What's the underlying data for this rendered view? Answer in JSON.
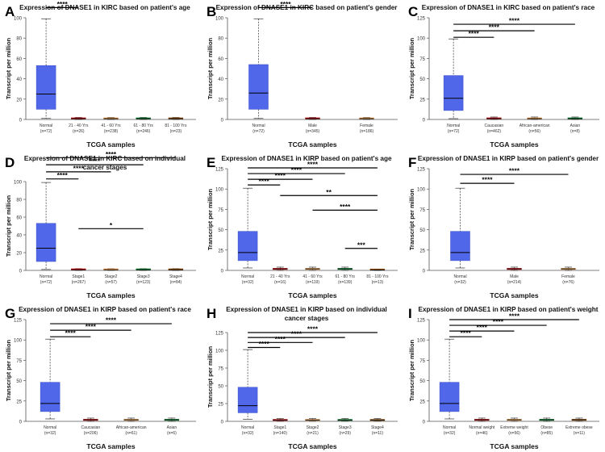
{
  "accent_box_color": "#4f67e8",
  "median_color": "#000000",
  "chart_data": [
    {
      "type": "box",
      "letter": "A",
      "title": [
        "Expression of DNASE1 in KIRC based on patient's age"
      ],
      "xlabel": "TCGA samples",
      "ylabel": "Transcript per million",
      "ylim": [
        0,
        100
      ],
      "yticks": [
        0,
        20,
        40,
        60,
        80,
        100
      ],
      "categories": [
        {
          "name": "Normal",
          "n": "(n=72)",
          "q1": 10,
          "median": 25,
          "q3": 53,
          "min": 1,
          "max": 99
        },
        {
          "name": "21 - 40 Yrs",
          "n": "(n=26)",
          "q1": 0.4,
          "median": 0.8,
          "q3": 1.2,
          "min": 0,
          "max": 2
        },
        {
          "name": "41 - 60 Yrs",
          "n": "(n=238)",
          "q1": 0.4,
          "median": 0.8,
          "q3": 1.2,
          "min": 0,
          "max": 2
        },
        {
          "name": "61 - 80 Yrs",
          "n": "(n=246)",
          "q1": 0.4,
          "median": 0.8,
          "q3": 1.2,
          "min": 0,
          "max": 2
        },
        {
          "name": "81 - 100 Yrs",
          "n": "(n=23)",
          "q1": 0.4,
          "median": 0.8,
          "q3": 1.2,
          "min": 0,
          "max": 2
        }
      ],
      "significance": [
        {
          "from": 0,
          "to": 1,
          "label": "****",
          "y": 110
        },
        {
          "from": 0,
          "to": 2,
          "label": "****",
          "y": 118
        },
        {
          "from": 0,
          "to": 3,
          "label": "****",
          "y": 126
        }
      ]
    },
    {
      "type": "box",
      "letter": "B",
      "title": [
        "Expression of DNASE1 in KIRC based on patient's gender"
      ],
      "xlabel": "TCGA samples",
      "ylabel": "Transcript per million",
      "ylim": [
        0,
        100
      ],
      "yticks": [
        0,
        20,
        40,
        60,
        80,
        100
      ],
      "categories": [
        {
          "name": "Normal",
          "n": "(n=72)",
          "q1": 10,
          "median": 26,
          "q3": 54,
          "min": 1,
          "max": 99
        },
        {
          "name": "Male",
          "n": "(n=345)",
          "q1": 0.4,
          "median": 0.8,
          "q3": 1.2,
          "min": 0,
          "max": 2
        },
        {
          "name": "Female",
          "n": "(n=186)",
          "q1": 0.4,
          "median": 0.8,
          "q3": 1.2,
          "min": 0,
          "max": 2
        }
      ],
      "significance": [
        {
          "from": 0,
          "to": 1,
          "label": "****",
          "y": 110
        },
        {
          "from": 0,
          "to": 2,
          "label": "****",
          "y": 120
        }
      ]
    },
    {
      "type": "box",
      "letter": "C",
      "title": [
        "Expression of DNASE1 in KIRC based on patient's race"
      ],
      "xlabel": "TCGA samples",
      "ylabel": "Transcript per million",
      "ylim": [
        0,
        125
      ],
      "yticks": [
        0,
        25,
        50,
        75,
        100,
        125
      ],
      "categories": [
        {
          "name": "Normal",
          "n": "(n=72)",
          "q1": 11,
          "median": 26,
          "q3": 54,
          "min": 1,
          "max": 99
        },
        {
          "name": "Caucasian",
          "n": "(n=462)",
          "q1": 0.5,
          "median": 1,
          "q3": 1.5,
          "min": 0,
          "max": 3
        },
        {
          "name": "African-american",
          "n": "(n=56)",
          "q1": 0.5,
          "median": 1,
          "q3": 1.5,
          "min": 0,
          "max": 3
        },
        {
          "name": "Asian",
          "n": "(n=8)",
          "q1": 0.5,
          "median": 1,
          "q3": 1.5,
          "min": 0,
          "max": 3
        }
      ],
      "significance": [
        {
          "from": 0,
          "to": 1,
          "label": "****",
          "y": 101
        },
        {
          "from": 0,
          "to": 2,
          "label": "****",
          "y": 109
        },
        {
          "from": 0,
          "to": 3,
          "label": "****",
          "y": 117
        }
      ]
    },
    {
      "type": "box",
      "letter": "D",
      "title": [
        "Expression of DNASE1 in KIRC based on individual",
        "cancer stages"
      ],
      "xlabel": "TCGA samples",
      "ylabel": "Transcript per million",
      "ylim": [
        0,
        100
      ],
      "yticks": [
        0,
        20,
        40,
        60,
        80,
        100
      ],
      "categories": [
        {
          "name": "Normal",
          "n": "(n=72)",
          "q1": 10,
          "median": 25,
          "q3": 53,
          "min": 1,
          "max": 99
        },
        {
          "name": "Stage1",
          "n": "(n=267)",
          "q1": 0.4,
          "median": 0.8,
          "q3": 1.2,
          "min": 0,
          "max": 2
        },
        {
          "name": "Stage2",
          "n": "(n=57)",
          "q1": 0.4,
          "median": 0.8,
          "q3": 1.2,
          "min": 0,
          "max": 2
        },
        {
          "name": "Stage3",
          "n": "(n=123)",
          "q1": 0.4,
          "median": 0.8,
          "q3": 1.2,
          "min": 0,
          "max": 2
        },
        {
          "name": "Stage4",
          "n": "(n=84)",
          "q1": 0.4,
          "median": 0.8,
          "q3": 1.2,
          "min": 0,
          "max": 2
        }
      ],
      "significance": [
        {
          "from": 0,
          "to": 1,
          "label": "****",
          "y": 103
        },
        {
          "from": 0,
          "to": 2,
          "label": "****",
          "y": 111
        },
        {
          "from": 0,
          "to": 3,
          "label": "****",
          "y": 119
        },
        {
          "from": 0,
          "to": 4,
          "label": "****",
          "y": 127
        },
        {
          "from": 1,
          "to": 3,
          "label": "*",
          "y": 47
        }
      ]
    },
    {
      "type": "box",
      "letter": "E",
      "title": [
        "Expression of DNASE1 in KIRP based on patient's age"
      ],
      "xlabel": "TCGA samples",
      "ylabel": "Transcript per million",
      "ylim": [
        0,
        125
      ],
      "yticks": [
        0,
        25,
        50,
        75,
        100,
        125
      ],
      "categories": [
        {
          "name": "Normal",
          "n": "(n=32)",
          "q1": 12,
          "median": 22,
          "q3": 48,
          "min": 3,
          "max": 101
        },
        {
          "name": "21 - 40 Yrs",
          "n": "(n=16)",
          "q1": 1,
          "median": 1.8,
          "q3": 2.5,
          "min": 0,
          "max": 4
        },
        {
          "name": "41 - 60 Yrs",
          "n": "(n=119)",
          "q1": 1,
          "median": 1.8,
          "q3": 2.5,
          "min": 0,
          "max": 4
        },
        {
          "name": "61 - 80 Yrs",
          "n": "(n=139)",
          "q1": 1,
          "median": 1.8,
          "q3": 2.5,
          "min": 0,
          "max": 4
        },
        {
          "name": "81 - 100 Yrs",
          "n": "(n=13)",
          "q1": 0.3,
          "median": 0.6,
          "q3": 0.9,
          "min": 0,
          "max": 1.5
        }
      ],
      "significance": [
        {
          "from": 0,
          "to": 1,
          "label": "****",
          "y": 105
        },
        {
          "from": 0,
          "to": 2,
          "label": "****",
          "y": 112
        },
        {
          "from": 0,
          "to": 3,
          "label": "****",
          "y": 119
        },
        {
          "from": 0,
          "to": 4,
          "label": "****",
          "y": 126
        },
        {
          "from": 1,
          "to": 4,
          "label": "**",
          "y": 92
        },
        {
          "from": 2,
          "to": 4,
          "label": "****",
          "y": 74
        },
        {
          "from": 3,
          "to": 4,
          "label": "***",
          "y": 27
        }
      ]
    },
    {
      "type": "box",
      "letter": "F",
      "title": [
        "Expression of DNASE1 in KIRP based on patient's gender"
      ],
      "xlabel": "TCGA samples",
      "ylabel": "Transcript per million",
      "ylim": [
        0,
        125
      ],
      "yticks": [
        0,
        25,
        50,
        75,
        100,
        125
      ],
      "categories": [
        {
          "name": "Normal",
          "n": "(n=32)",
          "q1": 12,
          "median": 22,
          "q3": 48,
          "min": 3,
          "max": 101
        },
        {
          "name": "Male",
          "n": "(n=214)",
          "q1": 1,
          "median": 1.8,
          "q3": 2.5,
          "min": 0,
          "max": 4
        },
        {
          "name": "Female",
          "n": "(n=76)",
          "q1": 1,
          "median": 1.8,
          "q3": 2.5,
          "min": 0,
          "max": 4
        }
      ],
      "significance": [
        {
          "from": 0,
          "to": 1,
          "label": "****",
          "y": 107
        },
        {
          "from": 0,
          "to": 2,
          "label": "****",
          "y": 118
        }
      ]
    },
    {
      "type": "box",
      "letter": "G",
      "title": [
        "Expression of DNASE1 in KIRP based on patient's race"
      ],
      "xlabel": "TCGA samples",
      "ylabel": "Transcript per million",
      "ylim": [
        0,
        125
      ],
      "yticks": [
        0,
        25,
        50,
        75,
        100,
        125
      ],
      "categories": [
        {
          "name": "Normal",
          "n": "(n=32)",
          "q1": 12,
          "median": 22,
          "q3": 48,
          "min": 3,
          "max": 101
        },
        {
          "name": "Caucasian",
          "n": "(n=206)",
          "q1": 1,
          "median": 1.8,
          "q3": 2.5,
          "min": 0,
          "max": 4
        },
        {
          "name": "African-american",
          "n": "(n=61)",
          "q1": 1,
          "median": 1.8,
          "q3": 2.5,
          "min": 0,
          "max": 4
        },
        {
          "name": "Asian",
          "n": "(n=6)",
          "q1": 1,
          "median": 1.8,
          "q3": 2.5,
          "min": 0,
          "max": 4
        }
      ],
      "significance": [
        {
          "from": 0,
          "to": 1,
          "label": "****",
          "y": 104
        },
        {
          "from": 0,
          "to": 2,
          "label": "****",
          "y": 112
        },
        {
          "from": 0,
          "to": 3,
          "label": "****",
          "y": 120
        }
      ]
    },
    {
      "type": "box",
      "letter": "H",
      "title": [
        "Expression of DNASE1 in KIRP based on individual",
        "cancer stages"
      ],
      "xlabel": "TCGA samples",
      "ylabel": "Transcript per million",
      "ylim": [
        0,
        125
      ],
      "yticks": [
        0,
        25,
        50,
        75,
        100,
        125
      ],
      "categories": [
        {
          "name": "Normal",
          "n": "(n=32)",
          "q1": 12,
          "median": 22,
          "q3": 48,
          "min": 3,
          "max": 101
        },
        {
          "name": "Stage1",
          "n": "(n=140)",
          "q1": 1,
          "median": 1.8,
          "q3": 2.5,
          "min": 0,
          "max": 4
        },
        {
          "name": "Stage2",
          "n": "(n=21)",
          "q1": 1,
          "median": 1.8,
          "q3": 2.5,
          "min": 0,
          "max": 4
        },
        {
          "name": "Stage3",
          "n": "(n=29)",
          "q1": 1,
          "median": 1.8,
          "q3": 2.5,
          "min": 0,
          "max": 4
        },
        {
          "name": "Stage4",
          "n": "(n=11)",
          "q1": 1,
          "median": 1.8,
          "q3": 2.5,
          "min": 0,
          "max": 4
        }
      ],
      "significance": [
        {
          "from": 0,
          "to": 1,
          "label": "****",
          "y": 104
        },
        {
          "from": 0,
          "to": 2,
          "label": "****",
          "y": 111
        },
        {
          "from": 0,
          "to": 3,
          "label": "****",
          "y": 118
        },
        {
          "from": 0,
          "to": 4,
          "label": "****",
          "y": 125
        }
      ]
    },
    {
      "type": "box",
      "letter": "I",
      "title": [
        "Expression of DNASE1 in KIRP based on patient's weight"
      ],
      "xlabel": "TCGA samples",
      "ylabel": "Transcript per million",
      "ylim": [
        0,
        125
      ],
      "yticks": [
        0,
        25,
        50,
        75,
        100,
        125
      ],
      "categories": [
        {
          "name": "Normal",
          "n": "(n=32)",
          "q1": 12,
          "median": 22,
          "q3": 48,
          "min": 3,
          "max": 101
        },
        {
          "name": "Normal weight",
          "n": "(n=46)",
          "q1": 1,
          "median": 1.8,
          "q3": 2.5,
          "min": 0,
          "max": 4
        },
        {
          "name": "Extreme weight",
          "n": "(n=56)",
          "q1": 1,
          "median": 1.8,
          "q3": 2.5,
          "min": 0,
          "max": 4
        },
        {
          "name": "Obese",
          "n": "(n=85)",
          "q1": 1,
          "median": 1.8,
          "q3": 2.5,
          "min": 0,
          "max": 4
        },
        {
          "name": "Extreme obese",
          "n": "(n=11)",
          "q1": 1,
          "median": 1.8,
          "q3": 2.5,
          "min": 0,
          "max": 4
        }
      ],
      "significance": [
        {
          "from": 0,
          "to": 1,
          "label": "****",
          "y": 104
        },
        {
          "from": 0,
          "to": 2,
          "label": "****",
          "y": 111
        },
        {
          "from": 0,
          "to": 3,
          "label": "****",
          "y": 118
        },
        {
          "from": 0,
          "to": 4,
          "label": "****",
          "y": 125
        }
      ]
    }
  ]
}
